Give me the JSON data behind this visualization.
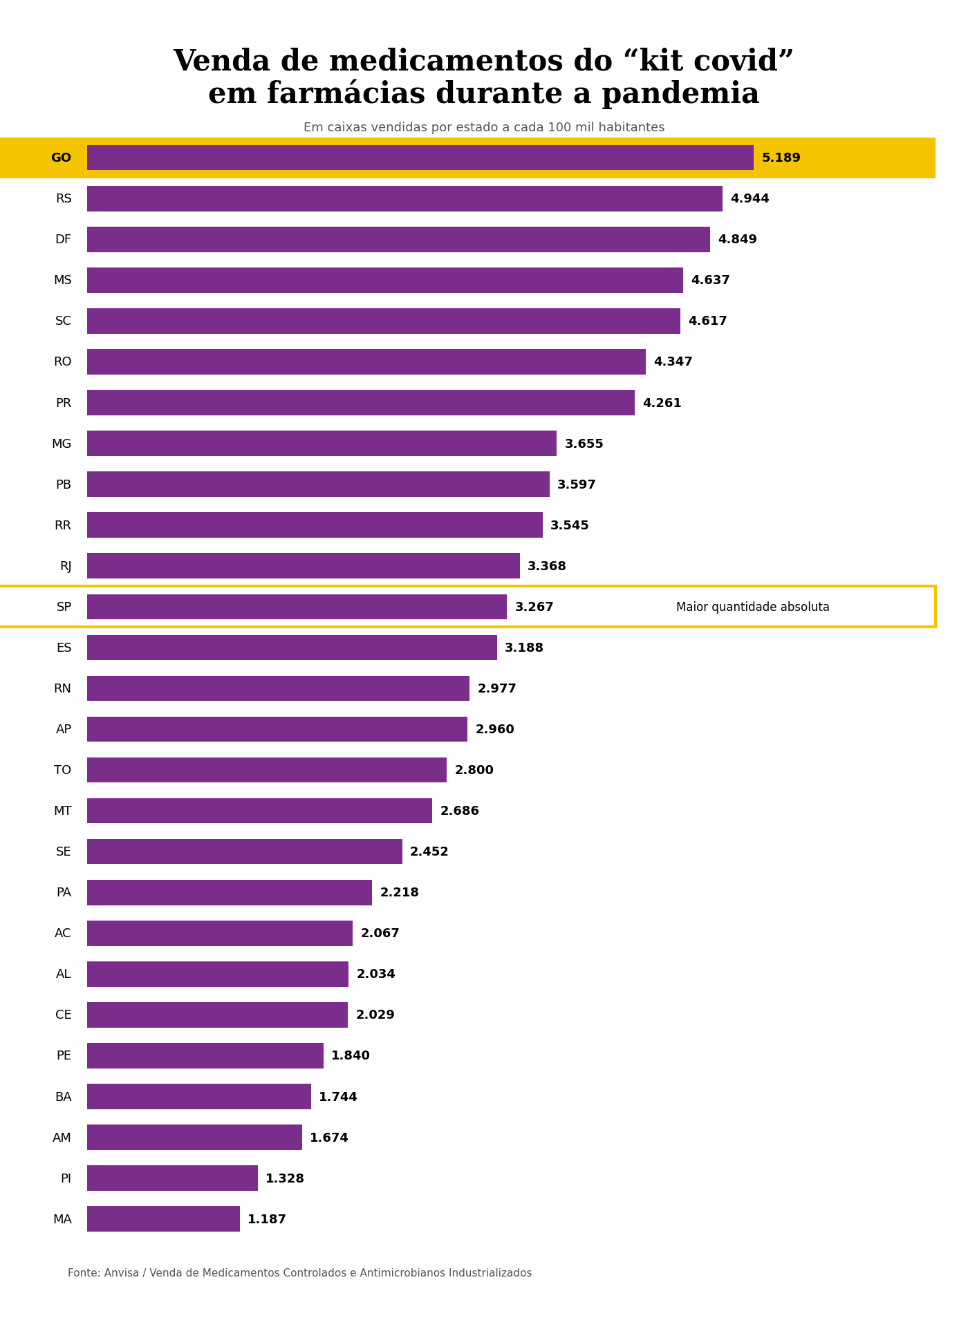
{
  "title_line1": "Venda de medicamentos do “kit covid”",
  "title_line2": "em farmácias durante a pandemia",
  "subtitle": "Em caixas vendidas por estado a cada 100 mil habitantes",
  "source": "Fonte: Anvisa / Venda de Medicamentos Controlados e Antimicrobianos Industrializados",
  "categories": [
    "GO",
    "RS",
    "DF",
    "MS",
    "SC",
    "RO",
    "PR",
    "MG",
    "PB",
    "RR",
    "RJ",
    "SP",
    "ES",
    "RN",
    "AP",
    "TO",
    "MT",
    "SE",
    "PA",
    "AC",
    "AL",
    "CE",
    "PE",
    "BA",
    "AM",
    "PI",
    "MA"
  ],
  "values": [
    5189,
    4944,
    4849,
    4637,
    4617,
    4347,
    4261,
    3655,
    3597,
    3545,
    3368,
    3267,
    3188,
    2977,
    2960,
    2800,
    2686,
    2452,
    2218,
    2067,
    2034,
    2029,
    1840,
    1744,
    1674,
    1328,
    1187
  ],
  "value_labels": [
    "5.189",
    "4.944",
    "4.849",
    "4.637",
    "4.617",
    "4.347",
    "4.261",
    "3.655",
    "3.597",
    "3.545",
    "3.368",
    "3.267",
    "3.188",
    "2.977",
    "2.960",
    "2.800",
    "2.686",
    "2.452",
    "2.218",
    "2.067",
    "2.034",
    "2.029",
    "1.840",
    "1.744",
    "1.674",
    "1.328",
    "1.187"
  ],
  "bar_color": "#7B2D8B",
  "highlight_go_bg": "#F5C400",
  "highlight_sp_border": "#F5C400",
  "background_color": "#FFFFFF",
  "title_color": "#000000",
  "subtitle_color": "#555555",
  "label_color": "#000000",
  "value_color": "#000000",
  "sp_annotation": "Maior quantidade absoluta",
  "sp_index": 11,
  "go_index": 0,
  "xlim_max": 5800,
  "bar_height": 0.62,
  "fig_width": 14.0,
  "fig_height": 19.08,
  "title_fontsize": 30,
  "subtitle_fontsize": 13,
  "label_fontsize": 13,
  "value_fontsize": 13,
  "source_fontsize": 11
}
